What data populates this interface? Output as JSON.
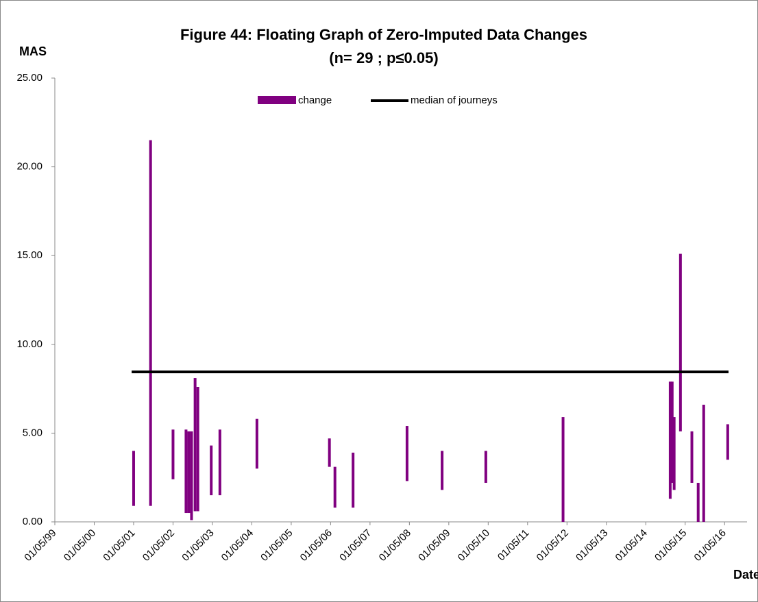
{
  "chart_data": {
    "type": "floating_bar",
    "title": "Figure 44: Floating Graph of Zero-Imputed  Data Changes",
    "subtitle": "(n= 29 ; p≤0.05)",
    "y_label": "MAS",
    "x_label": "Date",
    "legend": "top",
    "ylim": [
      0,
      25
    ],
    "yticks": [
      {
        "value": 0,
        "label": "0.00"
      },
      {
        "value": 5,
        "label": "5.00"
      },
      {
        "value": 10,
        "label": "10.00"
      },
      {
        "value": 15,
        "label": "15.00"
      },
      {
        "value": 20,
        "label": "20.00"
      },
      {
        "value": 25,
        "label": "25.00"
      }
    ],
    "xlim": [
      1999,
      2016.57
    ],
    "xticks": [
      {
        "value": 1999,
        "label": "01/05/99"
      },
      {
        "value": 2000,
        "label": "01/05/00"
      },
      {
        "value": 2001,
        "label": "01/05/01"
      },
      {
        "value": 2002,
        "label": "01/05/02"
      },
      {
        "value": 2003,
        "label": "01/05/03"
      },
      {
        "value": 2004,
        "label": "01/05/04"
      },
      {
        "value": 2005,
        "label": "01/05/05"
      },
      {
        "value": 2006,
        "label": "01/05/06"
      },
      {
        "value": 2007,
        "label": "01/05/07"
      },
      {
        "value": 2008,
        "label": "01/05/08"
      },
      {
        "value": 2009,
        "label": "01/05/09"
      },
      {
        "value": 2010,
        "label": "01/05/10"
      },
      {
        "value": 2011,
        "label": "01/05/11"
      },
      {
        "value": 2012,
        "label": "01/05/12"
      },
      {
        "value": 2013,
        "label": "01/05/13"
      },
      {
        "value": 2014,
        "label": "01/05/14"
      },
      {
        "value": 2015,
        "label": "01/05/15"
      },
      {
        "value": 2016,
        "label": "01/05/16"
      }
    ],
    "series": [
      {
        "name": "change",
        "color": "#800080",
        "x": [
          2001.0,
          2001.43,
          2002.0,
          2002.33,
          2002.4,
          2002.47,
          2002.56,
          2002.63,
          2002.97,
          2003.19,
          2004.13,
          2005.97,
          2006.11,
          2006.57,
          2007.94,
          2008.83,
          2009.94,
          2011.9,
          2014.62,
          2014.67,
          2014.72,
          2014.88,
          2015.17,
          2015.33,
          2015.47,
          2016.08
        ],
        "low": [
          0.9,
          0.9,
          2.4,
          0.5,
          0.5,
          0.1,
          0.6,
          0.6,
          1.5,
          1.5,
          3.0,
          3.1,
          0.8,
          0.8,
          2.3,
          1.8,
          2.2,
          0.0,
          1.3,
          2.2,
          1.8,
          5.1,
          2.2,
          0.0,
          0.0,
          3.5
        ],
        "high": [
          4.0,
          21.5,
          5.2,
          5.2,
          5.1,
          5.1,
          8.1,
          7.6,
          4.3,
          5.2,
          5.8,
          4.7,
          3.1,
          3.9,
          5.4,
          4.0,
          4.0,
          5.9,
          7.9,
          7.9,
          5.9,
          15.1,
          5.1,
          2.2,
          6.6,
          5.5
        ]
      },
      {
        "name": "median of journeys",
        "color": "#000000",
        "x": [
          2000.95,
          2016.1
        ],
        "values": [
          8.45,
          8.45
        ]
      }
    ]
  }
}
